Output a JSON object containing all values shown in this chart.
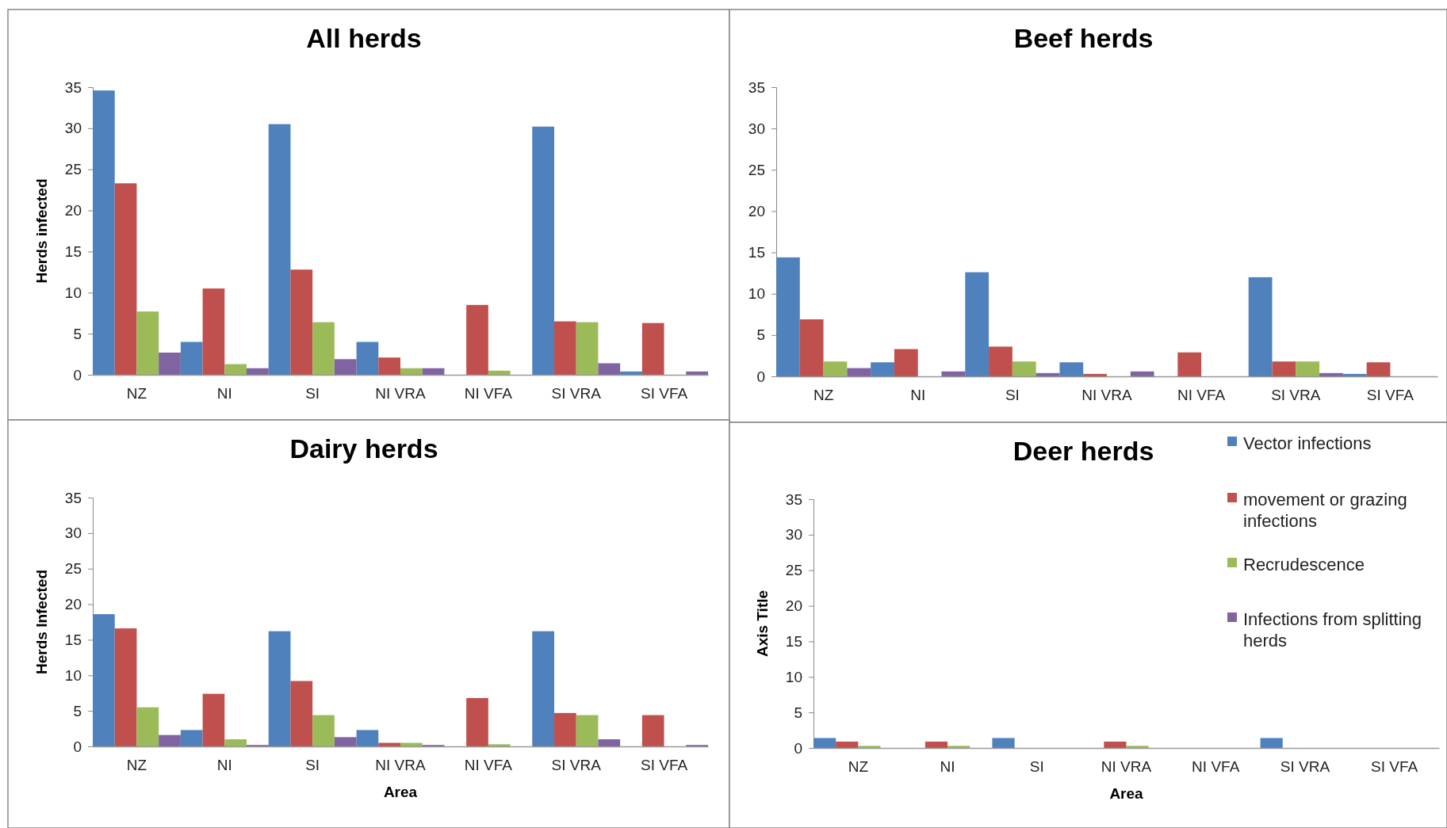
{
  "chart_data": [
    {
      "type": "bar",
      "title": "All herds",
      "ylabel": "Herds infected",
      "categories": [
        "NZ",
        "NI",
        "SI",
        "NI VRA",
        "NI VFA",
        "SI VRA",
        "SI VFA"
      ],
      "ylim": [
        0,
        35
      ],
      "yticks": [
        0,
        5,
        10,
        15,
        20,
        25,
        30,
        35
      ],
      "grid": false,
      "legend": false,
      "series": [
        {
          "color": "#4f81bd",
          "values": [
            34.6,
            4.0,
            30.5,
            4.0,
            0,
            30.2,
            0.4
          ]
        },
        {
          "color": "#c0504d",
          "values": [
            23.3,
            10.5,
            12.8,
            2.1,
            8.5,
            6.5,
            6.3
          ]
        },
        {
          "color": "#9bbb59",
          "values": [
            7.7,
            1.3,
            6.4,
            0.8,
            0.5,
            6.4,
            0
          ]
        },
        {
          "color": "#8064a2",
          "values": [
            2.7,
            0.8,
            1.9,
            0.8,
            0,
            1.4,
            0.4
          ]
        }
      ]
    },
    {
      "type": "bar",
      "title": "Beef herds",
      "categories": [
        "NZ",
        "NI",
        "SI",
        "NI VRA",
        "NI VFA",
        "SI VRA",
        "SI VFA"
      ],
      "ylim": [
        0,
        35
      ],
      "yticks": [
        0,
        5,
        10,
        15,
        20,
        25,
        30,
        35
      ],
      "grid": false,
      "legend": false,
      "series": [
        {
          "color": "#4f81bd",
          "values": [
            14.4,
            1.7,
            12.6,
            1.7,
            0,
            12.0,
            0.3
          ]
        },
        {
          "color": "#c0504d",
          "values": [
            6.9,
            3.3,
            3.6,
            0.3,
            2.9,
            1.8,
            1.7
          ]
        },
        {
          "color": "#9bbb59",
          "values": [
            1.8,
            0,
            1.8,
            0,
            0,
            1.8,
            0
          ]
        },
        {
          "color": "#8064a2",
          "values": [
            1.0,
            0.6,
            0.4,
            0.6,
            0,
            0.4,
            0
          ]
        }
      ]
    },
    {
      "type": "bar",
      "title": "Dairy herds",
      "xlabel": "Area",
      "ylabel": "Herds Infected",
      "categories": [
        "NZ",
        "NI",
        "SI",
        "NI VRA",
        "NI VFA",
        "SI VRA",
        "SI VFA"
      ],
      "ylim": [
        0,
        35
      ],
      "yticks": [
        0,
        5,
        10,
        15,
        20,
        25,
        30,
        35
      ],
      "grid": false,
      "legend": false,
      "series": [
        {
          "color": "#4f81bd",
          "values": [
            18.6,
            2.3,
            16.2,
            2.3,
            0,
            16.2,
            0
          ]
        },
        {
          "color": "#c0504d",
          "values": [
            16.6,
            7.4,
            9.2,
            0.5,
            6.8,
            4.7,
            4.4
          ]
        },
        {
          "color": "#9bbb59",
          "values": [
            5.5,
            1.0,
            4.4,
            0.5,
            0.3,
            4.4,
            0
          ]
        },
        {
          "color": "#8064a2",
          "values": [
            1.6,
            0.2,
            1.3,
            0.2,
            0,
            1.0,
            0.2
          ]
        }
      ]
    },
    {
      "type": "bar",
      "title": "Deer herds",
      "xlabel": "Area",
      "ylabel": "Axis Title",
      "categories": [
        "NZ",
        "NI",
        "SI",
        "NI VRA",
        "NI VFA",
        "SI VRA",
        "SI VFA"
      ],
      "ylim": [
        0,
        35
      ],
      "yticks": [
        0,
        5,
        10,
        15,
        20,
        25,
        30,
        35
      ],
      "grid": false,
      "legend": "top right",
      "series": [
        {
          "name": "Vector infections",
          "color": "#4f81bd",
          "values": [
            1.4,
            0,
            1.4,
            0,
            0,
            1.4,
            0
          ]
        },
        {
          "name": "movement or grazing infections",
          "color": "#c0504d",
          "values": [
            0.9,
            0.9,
            0,
            0.9,
            0,
            0,
            0
          ]
        },
        {
          "name": "Recrudescence",
          "color": "#9bbb59",
          "values": [
            0.3,
            0.3,
            0,
            0.3,
            0,
            0,
            0
          ]
        },
        {
          "name": "Infections from splitting herds",
          "color": "#8064a2",
          "values": [
            0,
            0,
            0,
            0,
            0,
            0,
            0
          ]
        }
      ]
    }
  ]
}
